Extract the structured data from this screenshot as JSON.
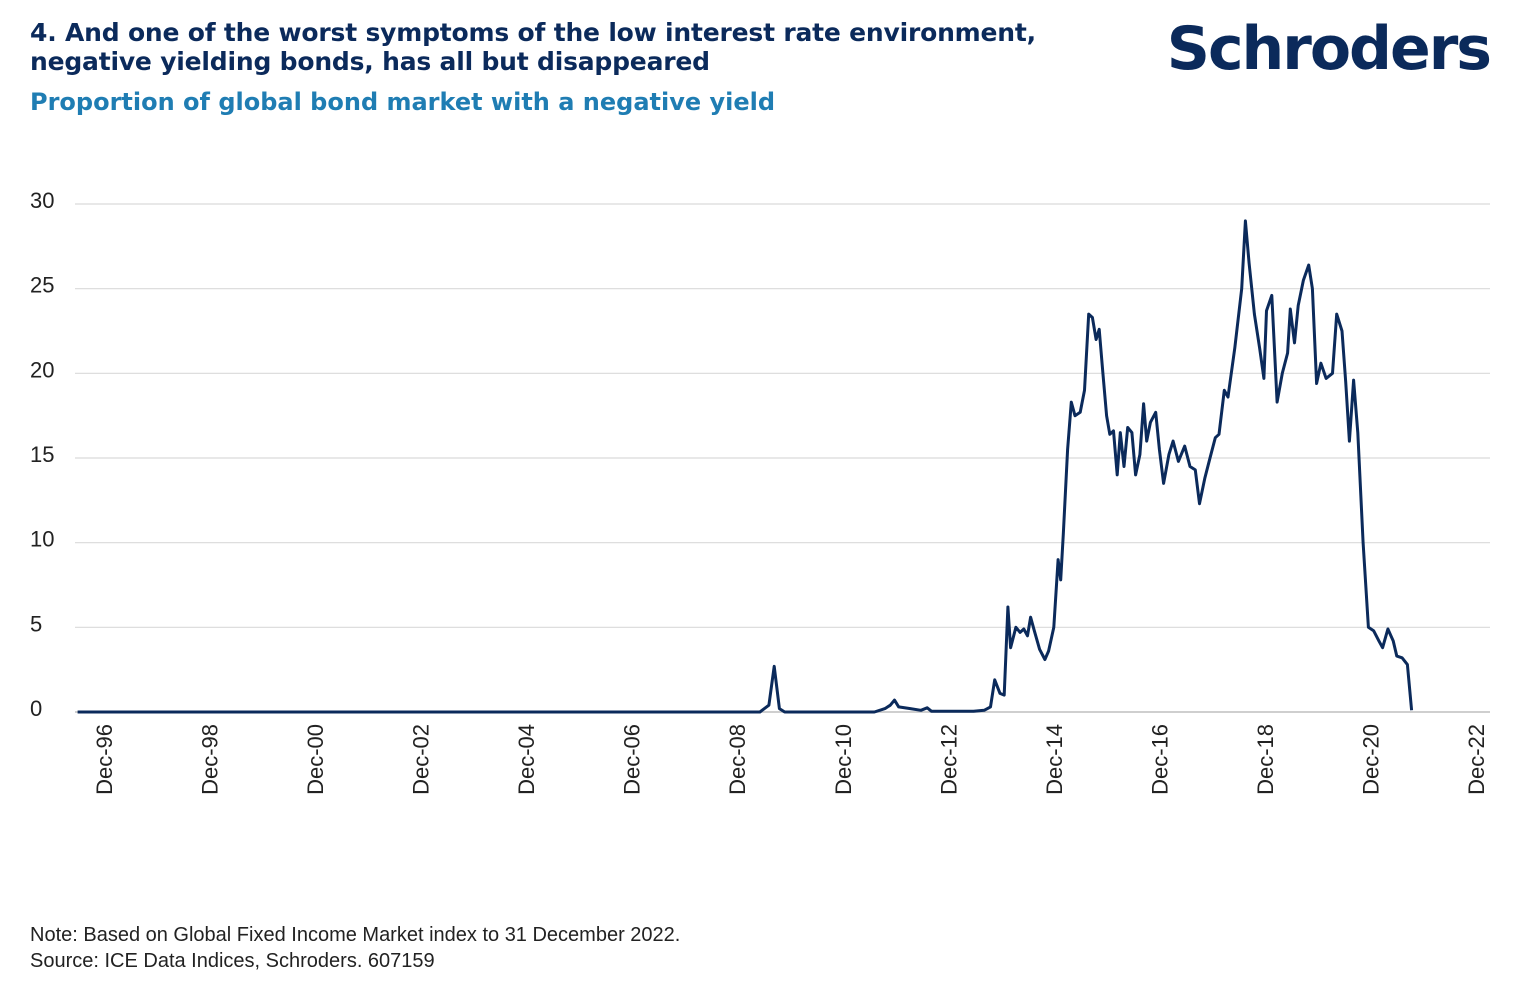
{
  "header": {
    "title_line1": "4. And one of the worst symptoms of the low interest rate environment,",
    "title_line2": "negative yielding bonds, has all but disappeared",
    "subtitle": "Proportion of global bond market with a negative yield",
    "logo_text": "Schroders"
  },
  "footer": {
    "note": "Note: Based on Global Fixed Income Market index to 31 December 2022.",
    "source": "Source: ICE Data Indices, Schroders. 607159"
  },
  "colors": {
    "title": "#0b2a5b",
    "subtitle": "#1f7db3",
    "line": "#0b2a5b",
    "grid": "#d9d9d9"
  },
  "chart_data": {
    "type": "line",
    "title": "Proportion of global bond market with a negative yield",
    "xlabel": "",
    "ylabel": "",
    "ylim": [
      0,
      30
    ],
    "yticks": [
      0,
      5,
      10,
      15,
      20,
      25,
      30
    ],
    "xlim": [
      1996.92,
      2022.92
    ],
    "xticks": [
      {
        "x": 1996.92,
        "label": "Dec-96"
      },
      {
        "x": 1998.92,
        "label": "Dec-98"
      },
      {
        "x": 2000.92,
        "label": "Dec-00"
      },
      {
        "x": 2002.92,
        "label": "Dec-02"
      },
      {
        "x": 2004.92,
        "label": "Dec-04"
      },
      {
        "x": 2006.92,
        "label": "Dec-06"
      },
      {
        "x": 2008.92,
        "label": "Dec-08"
      },
      {
        "x": 2010.92,
        "label": "Dec-10"
      },
      {
        "x": 2012.92,
        "label": "Dec-12"
      },
      {
        "x": 2014.92,
        "label": "Dec-14"
      },
      {
        "x": 2016.92,
        "label": "Dec-16"
      },
      {
        "x": 2018.92,
        "label": "Dec-18"
      },
      {
        "x": 2020.92,
        "label": "Dec-20"
      },
      {
        "x": 2022.92,
        "label": "Dec-22"
      }
    ],
    "grid": true,
    "legend": "none",
    "series": [
      {
        "points": [
          [
            1996.42,
            0
          ],
          [
            2009.35,
            0
          ],
          [
            2009.52,
            0.4
          ],
          [
            2009.62,
            2.7
          ],
          [
            2009.72,
            0.2
          ],
          [
            2009.82,
            0
          ],
          [
            2011.52,
            0
          ],
          [
            2011.72,
            0.2
          ],
          [
            2011.82,
            0.4
          ],
          [
            2011.9,
            0.7
          ],
          [
            2011.98,
            0.3
          ],
          [
            2012.2,
            0.2
          ],
          [
            2012.4,
            0.1
          ],
          [
            2012.52,
            0.25
          ],
          [
            2012.6,
            0.05
          ],
          [
            2013.4,
            0.05
          ],
          [
            2013.6,
            0.1
          ],
          [
            2013.72,
            0.3
          ],
          [
            2013.8,
            1.9
          ],
          [
            2013.9,
            1.1
          ],
          [
            2013.98,
            1.0
          ],
          [
            2014.05,
            6.2
          ],
          [
            2014.1,
            3.8
          ],
          [
            2014.2,
            5.0
          ],
          [
            2014.28,
            4.7
          ],
          [
            2014.35,
            4.9
          ],
          [
            2014.42,
            4.5
          ],
          [
            2014.48,
            5.6
          ],
          [
            2014.55,
            4.8
          ],
          [
            2014.65,
            3.7
          ],
          [
            2014.75,
            3.1
          ],
          [
            2014.82,
            3.6
          ],
          [
            2014.92,
            5.0
          ],
          [
            2015.0,
            9.0
          ],
          [
            2015.05,
            7.8
          ],
          [
            2015.1,
            10.5
          ],
          [
            2015.18,
            15.5
          ],
          [
            2015.25,
            18.3
          ],
          [
            2015.32,
            17.5
          ],
          [
            2015.42,
            17.7
          ],
          [
            2015.5,
            19.0
          ],
          [
            2015.58,
            23.5
          ],
          [
            2015.65,
            23.3
          ],
          [
            2015.72,
            22.0
          ],
          [
            2015.78,
            22.6
          ],
          [
            2015.85,
            20.0
          ],
          [
            2015.92,
            17.5
          ],
          [
            2015.98,
            16.4
          ],
          [
            2016.05,
            16.6
          ],
          [
            2016.12,
            14.0
          ],
          [
            2016.18,
            16.5
          ],
          [
            2016.25,
            14.5
          ],
          [
            2016.32,
            16.8
          ],
          [
            2016.4,
            16.5
          ],
          [
            2016.47,
            14.0
          ],
          [
            2016.55,
            15.2
          ],
          [
            2016.62,
            18.2
          ],
          [
            2016.68,
            16.0
          ],
          [
            2016.75,
            17.1
          ],
          [
            2016.85,
            17.7
          ],
          [
            2016.92,
            15.5
          ],
          [
            2017.0,
            13.5
          ],
          [
            2017.1,
            15.2
          ],
          [
            2017.18,
            16.0
          ],
          [
            2017.28,
            14.8
          ],
          [
            2017.4,
            15.7
          ],
          [
            2017.5,
            14.5
          ],
          [
            2017.6,
            14.3
          ],
          [
            2017.68,
            12.3
          ],
          [
            2017.78,
            13.8
          ],
          [
            2017.88,
            15.0
          ],
          [
            2017.98,
            16.2
          ],
          [
            2018.05,
            16.4
          ],
          [
            2018.15,
            19.0
          ],
          [
            2018.22,
            18.6
          ],
          [
            2018.35,
            21.5
          ],
          [
            2018.48,
            25.0
          ],
          [
            2018.55,
            29.0
          ],
          [
            2018.62,
            26.5
          ],
          [
            2018.72,
            23.5
          ],
          [
            2018.82,
            21.5
          ],
          [
            2018.9,
            19.7
          ],
          [
            2018.95,
            23.7
          ],
          [
            2019.05,
            24.6
          ],
          [
            2019.15,
            18.3
          ],
          [
            2019.25,
            20.0
          ],
          [
            2019.35,
            21.2
          ],
          [
            2019.4,
            23.8
          ],
          [
            2019.48,
            21.8
          ],
          [
            2019.55,
            24.0
          ],
          [
            2019.65,
            25.5
          ],
          [
            2019.75,
            26.4
          ],
          [
            2019.82,
            25.0
          ],
          [
            2019.9,
            19.4
          ],
          [
            2019.98,
            20.6
          ],
          [
            2020.08,
            19.7
          ],
          [
            2020.2,
            20.0
          ],
          [
            2020.28,
            23.5
          ],
          [
            2020.38,
            22.5
          ],
          [
            2020.45,
            19.5
          ],
          [
            2020.52,
            16.0
          ],
          [
            2020.6,
            19.6
          ],
          [
            2020.68,
            16.5
          ],
          [
            2020.78,
            10.0
          ],
          [
            2020.88,
            5.0
          ],
          [
            2020.98,
            4.8
          ],
          [
            2021.08,
            4.2
          ],
          [
            2021.15,
            3.8
          ],
          [
            2021.25,
            4.9
          ],
          [
            2021.35,
            4.2
          ],
          [
            2021.42,
            3.3
          ],
          [
            2021.52,
            3.2
          ],
          [
            2021.62,
            2.8
          ],
          [
            2021.7,
            0.1
          ]
        ]
      }
    ]
  }
}
